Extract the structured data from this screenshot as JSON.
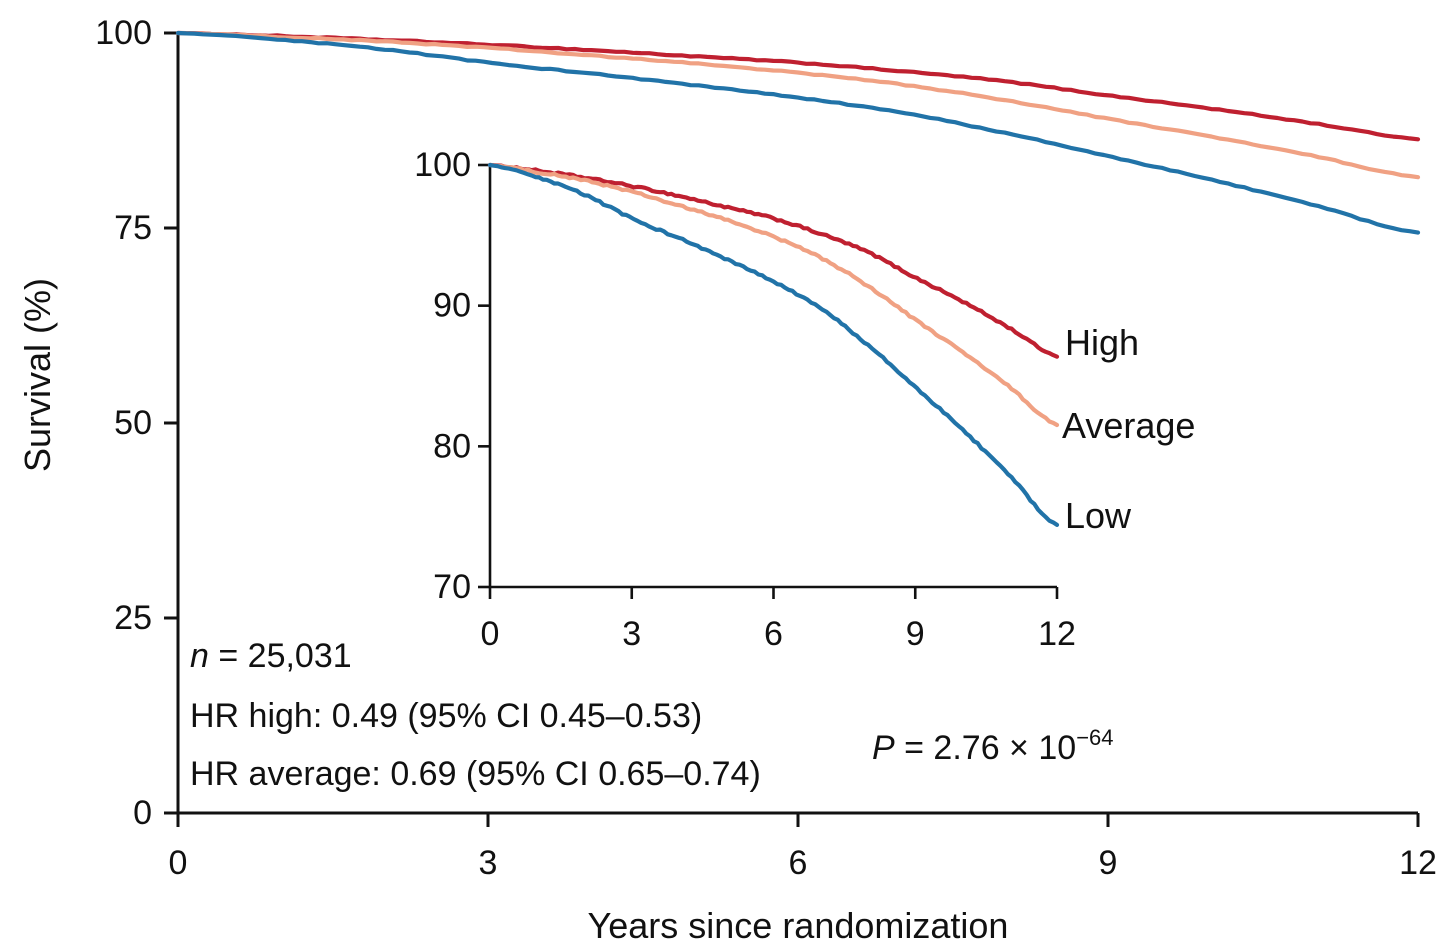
{
  "chart_data": {
    "type": "line",
    "xlabel": "Years since randomization",
    "ylabel": "Survival (%)",
    "x": [
      0,
      1,
      2,
      3,
      4,
      5,
      6,
      7,
      8,
      9,
      10,
      11,
      12
    ],
    "series": [
      {
        "name": "High",
        "color": "#bf2030",
        "values": [
          100,
          99.6,
          99.1,
          98.5,
          97.8,
          97.0,
          96.2,
          95.1,
          93.8,
          92.0,
          90.3,
          88.4,
          86.4
        ]
      },
      {
        "name": "Average",
        "color": "#f0a183",
        "values": [
          100,
          99.5,
          98.9,
          98.1,
          97.1,
          96.1,
          94.9,
          93.4,
          91.4,
          89.0,
          86.7,
          84.2,
          81.5
        ]
      },
      {
        "name": "Low",
        "color": "#2173a8",
        "values": [
          100,
          99.1,
          97.9,
          96.2,
          94.8,
          93.3,
          91.7,
          89.8,
          87.2,
          84.2,
          81.2,
          77.9,
          74.4
        ]
      }
    ],
    "main_axis": {
      "xlim": [
        0,
        12
      ],
      "ylim": [
        0,
        100
      ],
      "xticks": [
        0,
        3,
        6,
        9,
        12
      ],
      "yticks": [
        0,
        25,
        50,
        75,
        100
      ]
    },
    "inset_axis": {
      "xlim": [
        0,
        12
      ],
      "ylim": [
        70,
        100
      ],
      "xticks": [
        0,
        3,
        6,
        9,
        12
      ],
      "yticks": [
        70,
        80,
        90,
        100
      ]
    },
    "legend_position": "inset-right",
    "grid": false,
    "annotations": {
      "n": {
        "italic": "n",
        "text": " = 25,031"
      },
      "hr_high": "HR high: 0.49 (95% CI 0.45–0.53)",
      "hr_average": "HR average: 0.69 (95% CI 0.65–0.74)",
      "p": {
        "italic": "P",
        "text": " = 2.76 × 10",
        "exponent": "−64"
      }
    },
    "axis_color": "#111111"
  }
}
